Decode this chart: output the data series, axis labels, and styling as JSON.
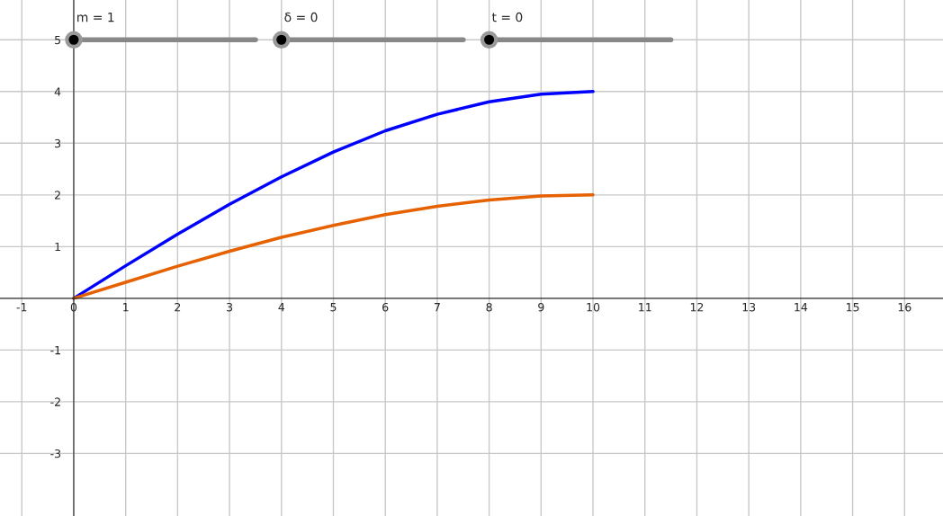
{
  "chart_data": {
    "type": "line",
    "x": [
      0,
      1,
      2,
      3,
      4,
      5,
      6,
      7,
      8,
      9,
      10
    ],
    "series": [
      {
        "color": "#0000ff",
        "values": [
          0,
          0.63,
          1.24,
          1.82,
          2.35,
          2.83,
          3.24,
          3.56,
          3.8,
          3.95,
          4.0
        ]
      },
      {
        "color": "#e66100",
        "values": [
          0,
          0.31,
          0.62,
          0.91,
          1.18,
          1.41,
          1.62,
          1.78,
          1.9,
          1.98,
          2.0
        ]
      }
    ],
    "xlim": [
      -1.42,
      16.74
    ],
    "ylim": [
      -4.21,
      5.77
    ],
    "xticks": [
      -1,
      0,
      1,
      2,
      3,
      4,
      5,
      6,
      7,
      8,
      9,
      10,
      11,
      12,
      13,
      14,
      15,
      16
    ],
    "yticks": [
      -3,
      -2,
      -1,
      1,
      2,
      3,
      4,
      5
    ],
    "grid": true,
    "marker": "none",
    "line_style": "solid",
    "annotations": [
      "m = 1",
      "δ = 0",
      "t = 0"
    ]
  }
}
